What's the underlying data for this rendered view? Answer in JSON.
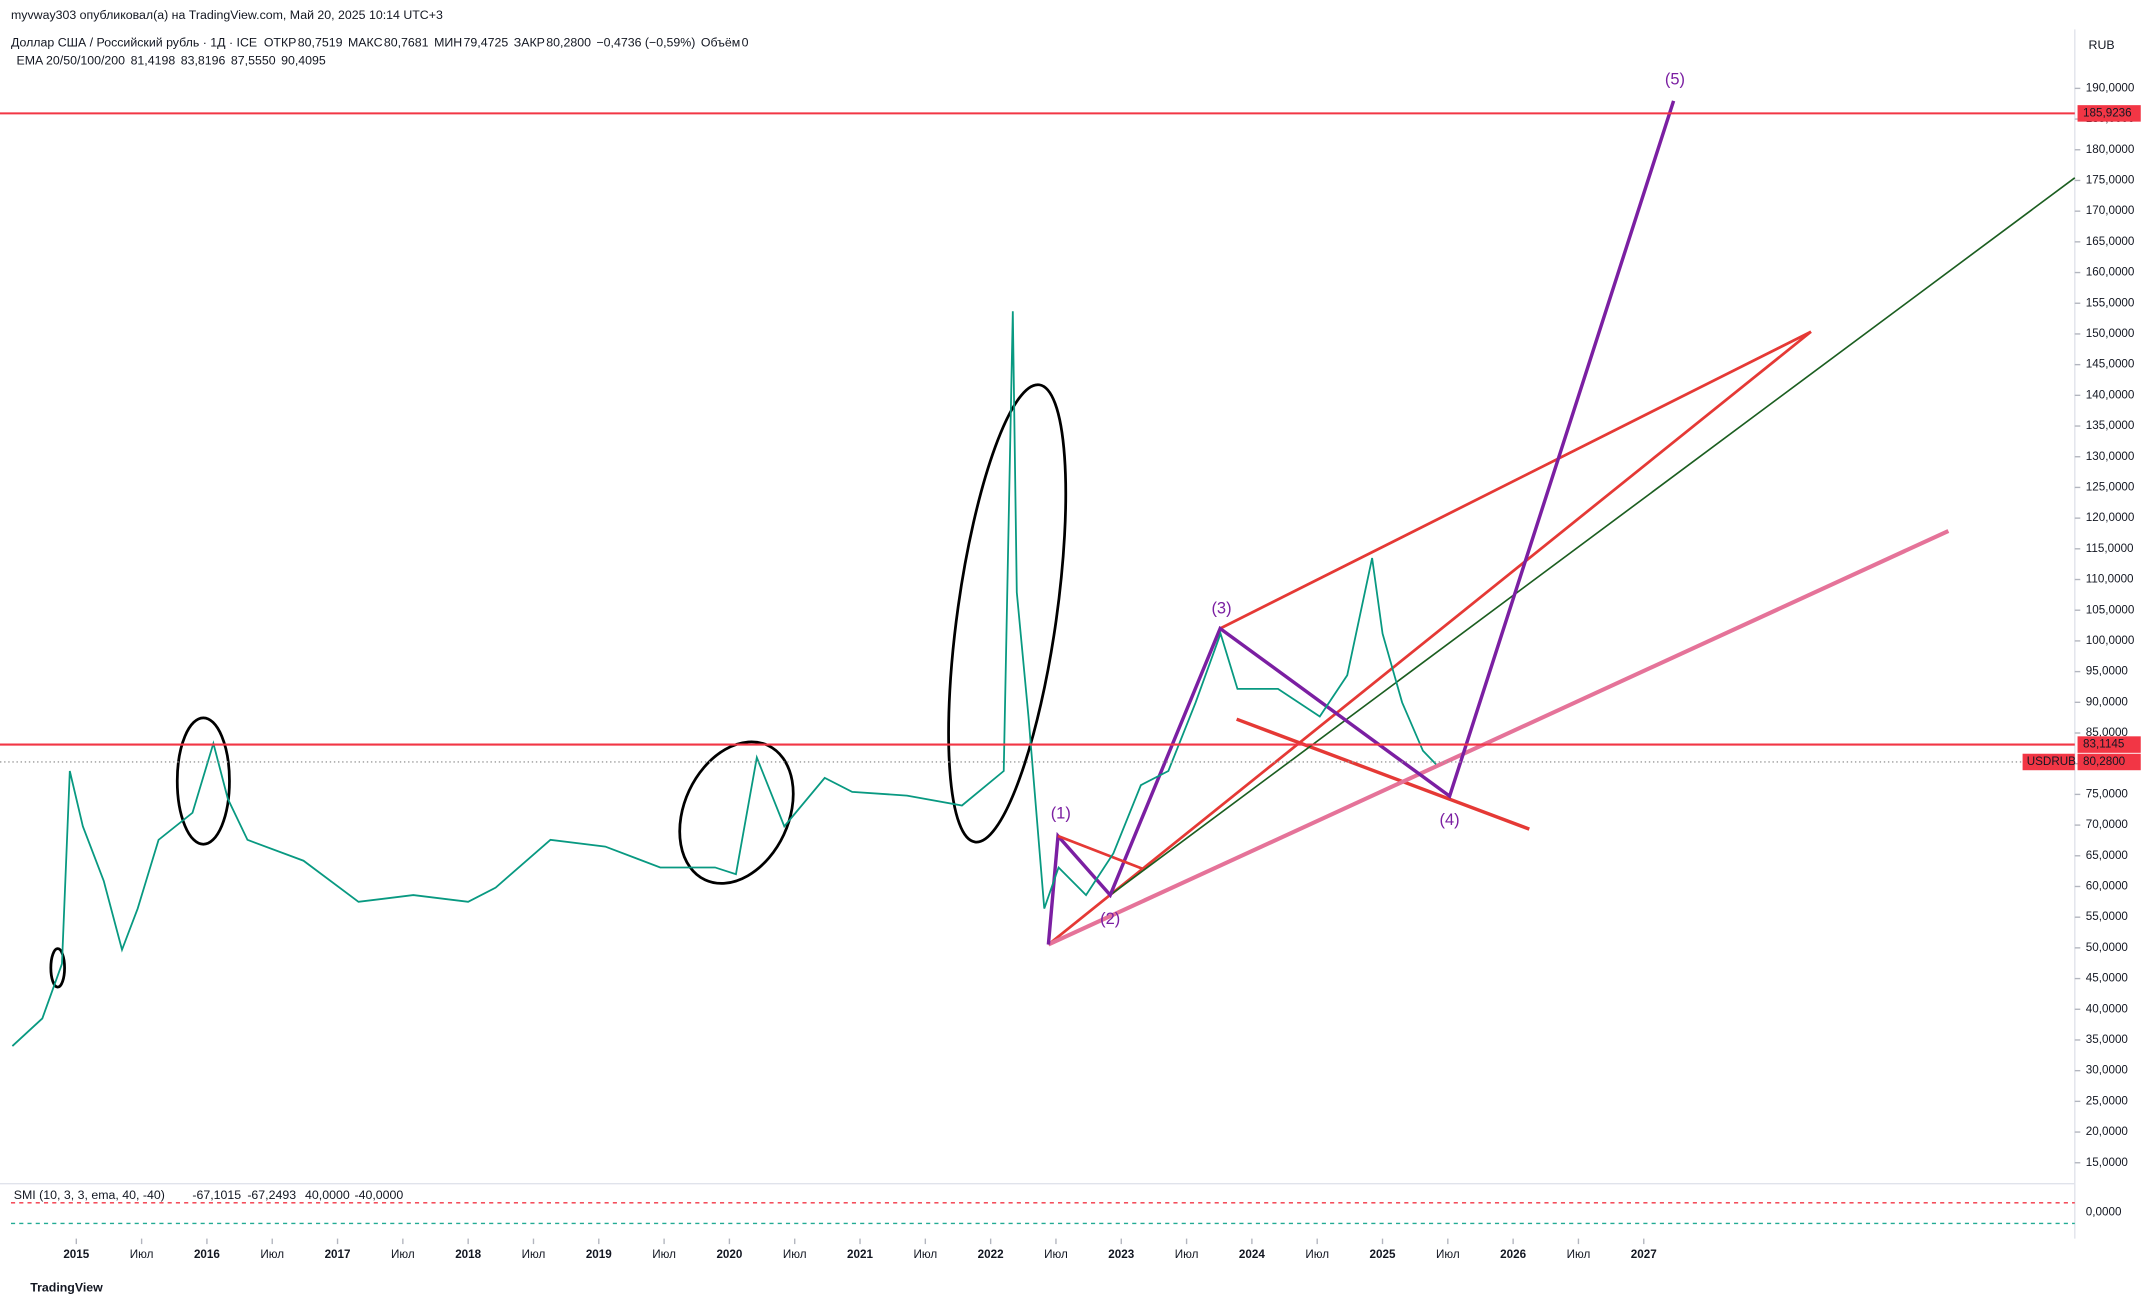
{
  "header": {
    "publisher": "myvway303 опубликовал(а) на TradingView.com, Май 20, 2025 10:14 UTC+3",
    "symbol": "Доллар США / Российский рубль · 1Д · ICE",
    "ohlc": [
      {
        "key": "ОТКР",
        "val": "80,7519"
      },
      {
        "key": "МАКС",
        "val": "80,7681"
      },
      {
        "key": "МИН",
        "val": "79,4725"
      },
      {
        "key": "ЗАКР",
        "val": "80,2800"
      }
    ],
    "change": "−0,4736 (−0,59%)",
    "volume_key": "Объём",
    "volume_val": "0",
    "ema_label": "EMA 20/50/100/200",
    "ema_values": [
      "81,4198",
      "83,8196",
      "87,5550",
      "90,4095"
    ],
    "currency": "RUB"
  },
  "chart_data": {
    "type": "line",
    "x": [
      2014.51,
      2014.74,
      2014.89,
      2014.95,
      2015.05,
      2015.21,
      2015.35,
      2015.47,
      2015.63,
      2015.89,
      2016.05,
      2016.16,
      2016.31,
      2016.74,
      2017.16,
      2017.58,
      2018.0,
      2018.21,
      2018.63,
      2019.05,
      2019.47,
      2019.89,
      2020.05,
      2020.21,
      2020.42,
      2020.73,
      2020.94,
      2021.36,
      2021.78,
      2022.1,
      2022.17,
      2022.2,
      2022.29,
      2022.41,
      2022.52,
      2022.73,
      2022.94,
      2023.15,
      2023.36,
      2023.57,
      2023.76,
      2023.89,
      2024.2,
      2024.52,
      2024.73,
      2024.92,
      2025.0,
      2025.15,
      2025.31,
      2025.41
    ],
    "series": [
      {
        "name": "USDRUB",
        "color": "#089981",
        "values": [
          34,
          38.5,
          47.4,
          78.8,
          69.8,
          60.9,
          49.7,
          56.4,
          67.6,
          72,
          83.3,
          74.3,
          67.6,
          64.2,
          57.5,
          58.6,
          57.5,
          59.8,
          67.6,
          66.5,
          63.1,
          63.1,
          62,
          81,
          69.8,
          77.7,
          75.4,
          74.8,
          73.2,
          78.8,
          153.7,
          107.9,
          87.7,
          56.4,
          63.1,
          58.6,
          65.4,
          76.5,
          78.8,
          90,
          101.2,
          92.2,
          92.2,
          87.7,
          94.4,
          113.5,
          101.2,
          90,
          82.1,
          79.9
        ]
      }
    ],
    "xlim": [
      2014.5,
      2030.3
    ],
    "xticks": [
      2015,
      {
        "value": 2015.5,
        "label": "Июл"
      },
      2016,
      {
        "value": 2016.5,
        "label": "Июл"
      },
      2017,
      {
        "value": 2017.5,
        "label": "Июл"
      },
      2018,
      {
        "value": 2018.5,
        "label": "Июл"
      },
      2019,
      {
        "value": 2019.5,
        "label": "Июл"
      },
      2020,
      {
        "value": 2020.5,
        "label": "Июл"
      },
      2021,
      {
        "value": 2021.5,
        "label": "Июл"
      },
      2022,
      {
        "value": 2022.5,
        "label": "Июл"
      },
      2023,
      {
        "value": 2023.5,
        "label": "Июл"
      },
      2024,
      {
        "value": 2024.5,
        "label": "Июл"
      },
      2025,
      {
        "value": 2025.5,
        "label": "Июл"
      },
      2026,
      {
        "value": 2026.5,
        "label": "Июл"
      },
      2027
    ],
    "ylim": [
      11.6,
      199.6
    ],
    "yticks": [
      {
        "value": 15,
        "label": "15,0000"
      },
      {
        "value": 20,
        "label": "20,0000"
      },
      {
        "value": 25,
        "label": "25,0000"
      },
      {
        "value": 30,
        "label": "30,0000"
      },
      {
        "value": 35,
        "label": "35,0000"
      },
      {
        "value": 40,
        "label": "40,0000"
      },
      {
        "value": 45,
        "label": "45,0000"
      },
      {
        "value": 50,
        "label": "50,0000"
      },
      {
        "value": 55,
        "label": "55,0000"
      },
      {
        "value": 60,
        "label": "60,0000"
      },
      {
        "value": 65,
        "label": "65,0000"
      },
      {
        "value": 70,
        "label": "70,0000"
      },
      {
        "value": 75,
        "label": "75,0000"
      },
      {
        "value": 80,
        "label": "80,0000"
      },
      {
        "value": 85,
        "label": "85,0000"
      },
      {
        "value": 90,
        "label": "90,0000"
      },
      {
        "value": 95,
        "label": "95,0000"
      },
      {
        "value": 100,
        "label": "100,0000"
      },
      {
        "value": 105,
        "label": "105,0000"
      },
      {
        "value": 110,
        "label": "110,0000"
      },
      {
        "value": 115,
        "label": "115,0000"
      },
      {
        "value": 120,
        "label": "120,0000"
      },
      {
        "value": 125,
        "label": "125,0000"
      },
      {
        "value": 130,
        "label": "130,0000"
      },
      {
        "value": 135,
        "label": "135,0000"
      },
      {
        "value": 140,
        "label": "140,0000"
      },
      {
        "value": 145,
        "label": "145,0000"
      },
      {
        "value": 150,
        "label": "150,0000"
      },
      {
        "value": 155,
        "label": "155,0000"
      },
      {
        "value": 160,
        "label": "160,0000"
      },
      {
        "value": 165,
        "label": "165,0000"
      },
      {
        "value": 170,
        "label": "170,0000"
      },
      {
        "value": 175,
        "label": "175,0000"
      },
      {
        "value": 180,
        "label": "180,0000"
      },
      {
        "value": 185,
        "label": "185,0000"
      },
      {
        "value": 190,
        "label": "190,0000"
      }
    ],
    "hlines": [
      {
        "value": 185.9236,
        "label": "185,9236",
        "color": "#f23645"
      },
      {
        "value": 83.1145,
        "label": "83,1145",
        "color": "#f23645"
      }
    ],
    "last_price": {
      "name": "USDRUB",
      "value": 80.28,
      "label": "80,2800",
      "color": "#f23645"
    },
    "waves": [
      "(1)",
      "(2)",
      "(3)",
      "(4)",
      "(5)"
    ]
  },
  "oscillator": {
    "label": "SMI (10, 3, 3, ema, 40, -40)",
    "values": [
      "-67,1015",
      "-67,2493",
      "40,0000",
      "-40,0000"
    ],
    "axis_label": "0,0000"
  },
  "footer": "TradingView"
}
